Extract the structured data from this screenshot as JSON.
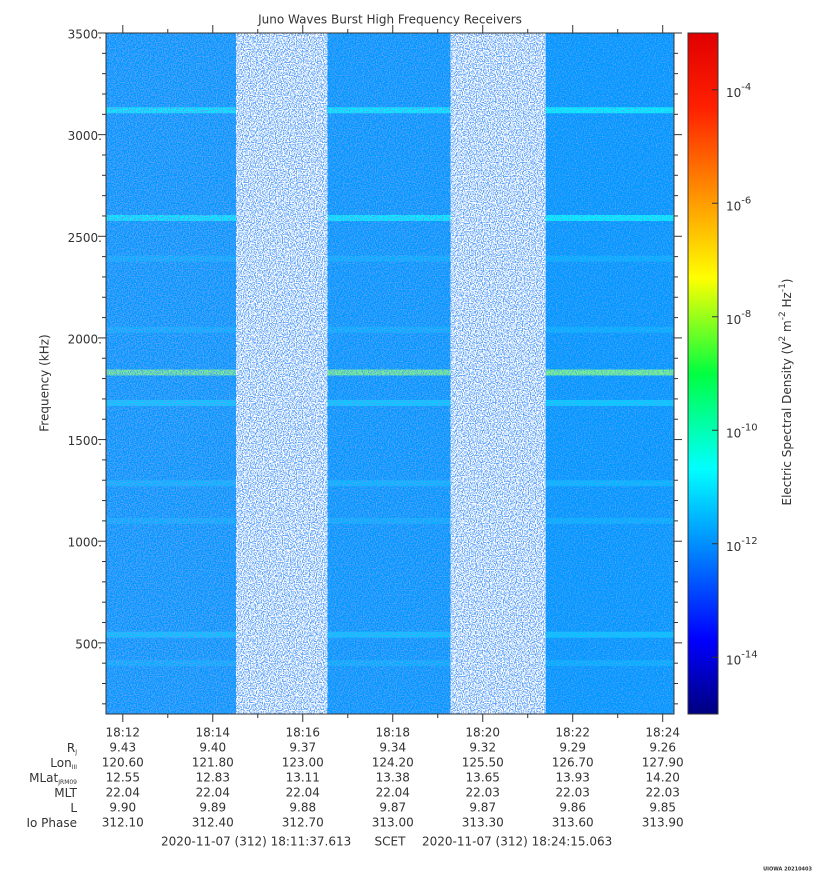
{
  "chart_data": {
    "type": "spectrogram",
    "title": "Juno Waves Burst High Frequency Receivers",
    "ylabel": "Frequency (kHz)",
    "xlim": [
      65497.613,
      66255.063
    ],
    "xticks": [
      {
        "value": 65520,
        "label": "18:12"
      },
      {
        "value": 65640,
        "label": "18:14"
      },
      {
        "value": 65760,
        "label": "18:16"
      },
      {
        "value": 65880,
        "label": "18:18"
      },
      {
        "value": 66000,
        "label": "18:20"
      },
      {
        "value": 66120,
        "label": "18:22"
      },
      {
        "value": 66240,
        "label": "18:24"
      }
    ],
    "xminorticks": [
      65580,
      65700,
      65820,
      65940,
      66060,
      66180
    ],
    "ylim": [
      150,
      3500
    ],
    "yticks": [
      {
        "value": 500,
        "label": "500."
      },
      {
        "value": 1000,
        "label": "1000."
      },
      {
        "value": 1500,
        "label": "1500."
      },
      {
        "value": 2000,
        "label": "2000."
      },
      {
        "value": 2500,
        "label": "2500."
      },
      {
        "value": 3000,
        "label": "3000."
      },
      {
        "value": 3500,
        "label": "3500."
      }
    ],
    "yminorticks": [
      200,
      300,
      400,
      600,
      700,
      800,
      900,
      1100,
      1200,
      1300,
      1400,
      1600,
      1700,
      1800,
      1900,
      2100,
      2200,
      2300,
      2400,
      2600,
      2700,
      2800,
      2900,
      3100,
      3200,
      3300,
      3400
    ],
    "segments": [
      [
        65497.613,
        65671
      ],
      [
        65793,
        65957
      ],
      [
        66084,
        66255.063
      ]
    ],
    "background": 2e-12,
    "lines": [
      {
        "frequency": 3120,
        "density": 3e-11
      },
      {
        "frequency": 2590,
        "density": 3e-11
      },
      {
        "frequency": 2390,
        "density": 4e-12
      },
      {
        "frequency": 2040,
        "density": 4e-12
      },
      {
        "frequency": 1830,
        "density": 1e-09
      },
      {
        "frequency": 1680,
        "density": 1e-11
      },
      {
        "frequency": 1285,
        "density": 5e-12
      },
      {
        "frequency": 1100,
        "density": 4e-12
      },
      {
        "frequency": 540,
        "density": 8e-12
      },
      {
        "frequency": 400,
        "density": 4e-12
      }
    ],
    "colorbar": {
      "log": true,
      "clim": [
        1e-15,
        0.001
      ],
      "ticks": [
        {
          "value": 0.0001,
          "base": "10",
          "exponent": "-4"
        },
        {
          "value": 1e-06,
          "base": "10",
          "exponent": "-6"
        },
        {
          "value": 1e-08,
          "base": "10",
          "exponent": "-8"
        },
        {
          "value": 1e-10,
          "base": "10",
          "exponent": "-10"
        },
        {
          "value": 1e-12,
          "base": "10",
          "exponent": "-12"
        },
        {
          "value": 1e-14,
          "base": "10",
          "exponent": "-14"
        }
      ],
      "label": [
        "Electric Spectral Density (V",
        "2",
        " m",
        "-2",
        " Hz",
        "-1",
        ")"
      ]
    },
    "ephemeris": [
      {
        "name": "R",
        "sub": "J",
        "values": [
          "9.43",
          "9.40",
          "9.37",
          "9.34",
          "9.32",
          "9.29",
          "9.26"
        ]
      },
      {
        "name": "Lon",
        "sub": "III",
        "values": [
          "120.60",
          "121.80",
          "123.00",
          "124.20",
          "125.50",
          "126.70",
          "127.90"
        ]
      },
      {
        "name": "MLat",
        "sub": "JRM09",
        "values": [
          "12.55",
          "12.83",
          "13.11",
          "13.38",
          "13.65",
          "13.93",
          "14.20"
        ]
      },
      {
        "name": "MLT",
        "values": [
          "22.04",
          "22.04",
          "22.04",
          "22.04",
          "22.03",
          "22.03",
          "22.03"
        ]
      },
      {
        "name": "L",
        "values": [
          "9.90",
          "9.89",
          "9.88",
          "9.87",
          "9.87",
          "9.86",
          "9.85"
        ]
      },
      {
        "name": "Io Phase",
        "values": [
          "312.10",
          "312.40",
          "312.70",
          "313.00",
          "313.30",
          "313.60",
          "313.90"
        ]
      }
    ],
    "scet": {
      "start": "2020-11-07 (312) 18:11:37.613",
      "label": "SCET",
      "end": "2020-11-07 (312) 18:24:15.063"
    },
    "credit": "UIOWA 20210403"
  }
}
